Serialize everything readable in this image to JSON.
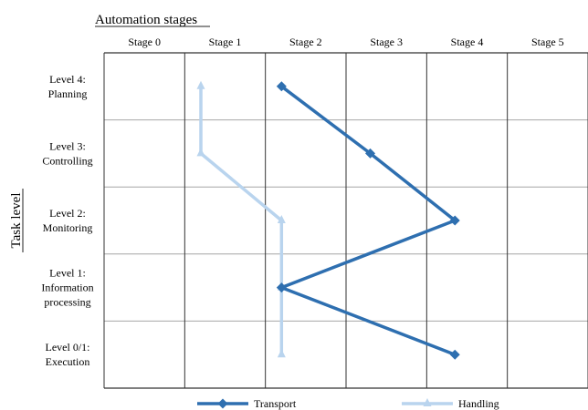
{
  "chart_data": {
    "type": "line",
    "title": "Automation stages",
    "xlabel": "Automation stages",
    "ylabel": "Task level",
    "x_categories": [
      "Stage 0",
      "Stage 1",
      "Stage 2",
      "Stage 3",
      "Stage 4",
      "Stage 5"
    ],
    "y_categories": [
      [
        "Level 4:",
        "Planning"
      ],
      [
        "Level 3:",
        "Controlling"
      ],
      [
        "Level 2:",
        "Monitoring"
      ],
      [
        "Level 1:",
        "Information",
        "processing"
      ],
      [
        "Level 0/1:",
        "Execution"
      ]
    ],
    "series": [
      {
        "name": "Transport",
        "color": "#2e6fb0",
        "marker": "diamond",
        "points": [
          {
            "x": 2.2,
            "y": "Level 4"
          },
          {
            "x": 3.3,
            "y": "Level 3"
          },
          {
            "x": 4.35,
            "y": "Level 2"
          },
          {
            "x": 2.2,
            "y": "Level 1"
          },
          {
            "x": 4.35,
            "y": "Level 0/1"
          }
        ]
      },
      {
        "name": "Handling",
        "color": "#b9d4ee",
        "marker": "triangle",
        "points": [
          {
            "x": 1.2,
            "y": "Level 4"
          },
          {
            "x": 1.2,
            "y": "Level 3"
          },
          {
            "x": 2.2,
            "y": "Level 2"
          },
          {
            "x": 2.2,
            "y": "Level 1"
          },
          {
            "x": 2.2,
            "y": "Level 0/1"
          }
        ]
      }
    ],
    "grid": true,
    "legend": "bottom"
  }
}
